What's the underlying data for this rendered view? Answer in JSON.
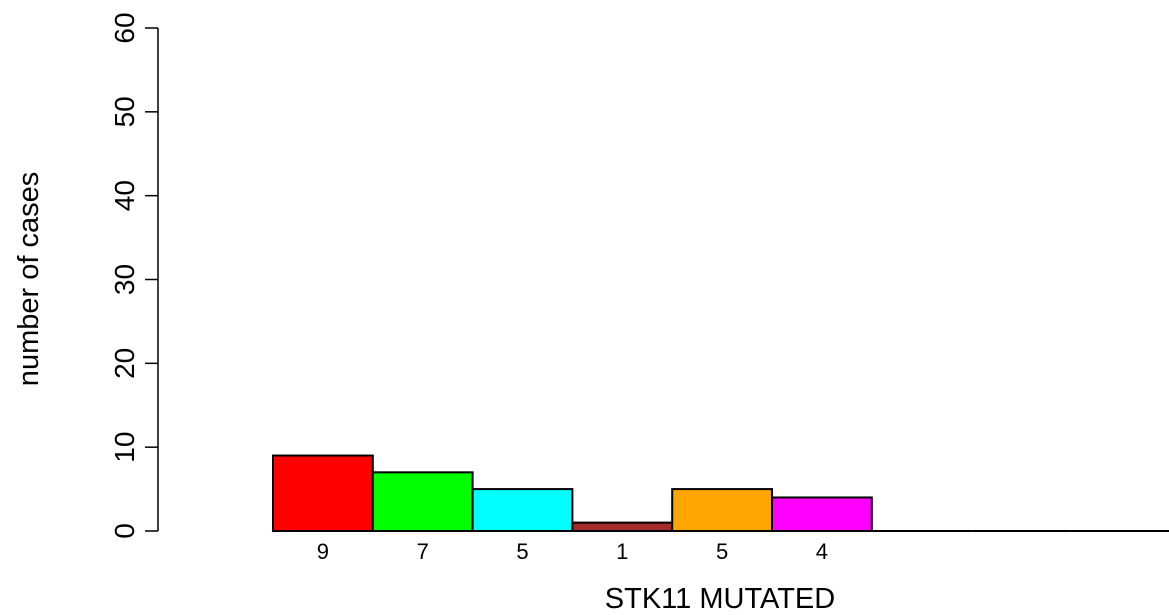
{
  "chart_data": {
    "type": "bar",
    "title": "",
    "xlabel": "STK11 MUTATED",
    "ylabel": "number of cases",
    "ylim": [
      0,
      60
    ],
    "yticks": [
      0,
      10,
      20,
      30,
      40,
      50,
      60
    ],
    "categories": [
      "9",
      "7",
      "5",
      "1",
      "5",
      "4",
      "",
      "",
      ""
    ],
    "values": [
      9,
      7,
      5,
      1,
      5,
      4,
      0,
      0,
      0
    ],
    "colors": [
      "#ff0000",
      "#00ff00",
      "#00ffff",
      "#a52a2a",
      "#ffa500",
      "#ff00ff",
      "#ffffff",
      "#ffffff",
      "#ffffff"
    ],
    "grid": false,
    "legend": "none"
  }
}
